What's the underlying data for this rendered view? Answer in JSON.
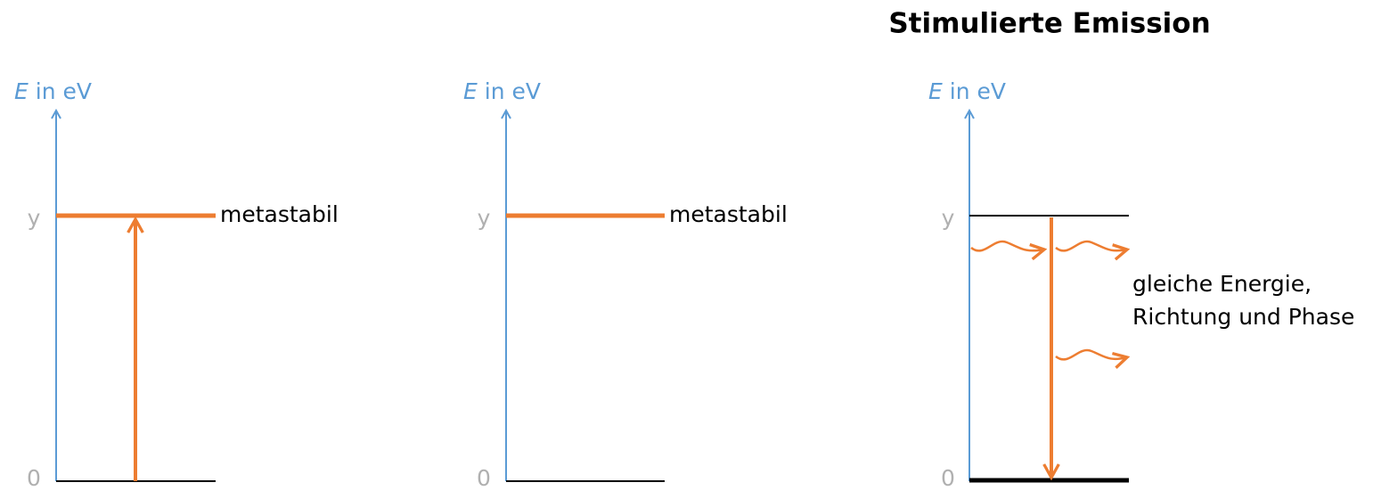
{
  "title": "Stimulierte Emission",
  "panels": [
    {
      "axis_label": {
        "symbol": "E",
        "unit": "in eV"
      },
      "levels": [
        "y",
        "0"
      ],
      "level_label": "metastabil"
    },
    {
      "axis_label": {
        "symbol": "E",
        "unit": "in eV"
      },
      "levels": [
        "y",
        "0"
      ],
      "level_label": "metastabil"
    },
    {
      "axis_label": {
        "symbol": "E",
        "unit": "in eV"
      },
      "levels": [
        "y",
        "0"
      ],
      "annotation": [
        "gleiche Energie,",
        "Richtung und Phase"
      ]
    }
  ]
}
